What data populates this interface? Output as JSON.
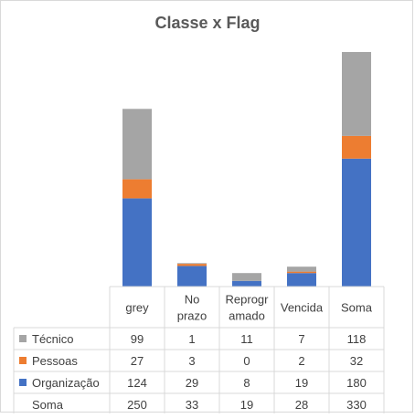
{
  "chart_data": {
    "type": "bar",
    "stacked": true,
    "title": "Classe  x Flag",
    "categories": [
      "grey",
      "No prazo",
      "Reprogramado",
      "Vencida",
      "Soma"
    ],
    "category_label_lines": [
      [
        "grey"
      ],
      [
        "No",
        "prazo"
      ],
      [
        "Reprogr",
        "amado"
      ],
      [
        "Vencida"
      ],
      [
        "Soma"
      ]
    ],
    "series": [
      {
        "name": "Técnico",
        "color": "#A5A5A5",
        "values": [
          99,
          1,
          11,
          7,
          118
        ]
      },
      {
        "name": "Pessoas",
        "color": "#ED7D31",
        "values": [
          27,
          3,
          0,
          2,
          32
        ]
      },
      {
        "name": "Organização",
        "color": "#4472C4",
        "values": [
          124,
          29,
          8,
          19,
          180
        ]
      }
    ],
    "table_rows": [
      {
        "label": "Técnico",
        "swatch": "#A5A5A5",
        "values": [
          "99",
          "1",
          "11",
          "7",
          "118"
        ]
      },
      {
        "label": "Pessoas",
        "swatch": "#ED7D31",
        "values": [
          "27",
          "3",
          "0",
          "2",
          "32"
        ]
      },
      {
        "label": "Organização",
        "swatch": "#4472C4",
        "values": [
          "124",
          "29",
          "8",
          "19",
          "180"
        ]
      },
      {
        "label": "Soma",
        "swatch": null,
        "values": [
          "250",
          "33",
          "19",
          "28",
          "330"
        ]
      }
    ],
    "ylim": [
      0,
      330
    ],
    "legend_position": "data-table",
    "grid": false
  }
}
